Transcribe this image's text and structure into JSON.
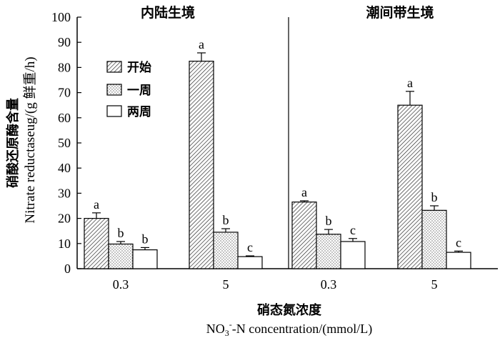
{
  "chart_data": {
    "type": "bar",
    "panels": [
      {
        "title": "内陆生境",
        "categories": [
          "0.3",
          "5"
        ],
        "series": [
          {
            "name": "开始",
            "values": [
              20.0,
              82.5
            ],
            "errors": [
              2.2,
              3.3
            ],
            "letters": [
              "a",
              "a"
            ]
          },
          {
            "name": "一周",
            "values": [
              9.8,
              14.5
            ],
            "errors": [
              1.0,
              1.4
            ],
            "letters": [
              "b",
              "b"
            ]
          },
          {
            "name": "两周",
            "values": [
              7.5,
              4.8
            ],
            "errors": [
              0.9,
              0.3
            ],
            "letters": [
              "b",
              "c"
            ]
          }
        ]
      },
      {
        "title": "潮间带生境",
        "categories": [
          "0.3",
          "5"
        ],
        "series": [
          {
            "name": "开始",
            "values": [
              26.5,
              65.0
            ],
            "errors": [
              0.5,
              5.5
            ],
            "letters": [
              "a",
              "a"
            ]
          },
          {
            "name": "一周",
            "values": [
              13.7,
              23.2
            ],
            "errors": [
              1.9,
              1.8
            ],
            "letters": [
              "b",
              "b"
            ]
          },
          {
            "name": "两周",
            "values": [
              10.8,
              6.5
            ],
            "errors": [
              1.2,
              0.5
            ],
            "letters": [
              "c",
              "c"
            ]
          }
        ]
      }
    ],
    "ylim": [
      0,
      100
    ],
    "yticks": [
      0,
      10,
      20,
      30,
      40,
      50,
      60,
      70,
      80,
      90,
      100
    ],
    "ylabel_cn": "硝酸还原酶含量",
    "ylabel_en": "Nitrate reductaseug/(g 鲜重/h)",
    "xlabel_cn": "硝态氮浓度",
    "xlabel_en_prefix": "NO",
    "xlabel_en_sub": "3",
    "xlabel_en_sup": "-",
    "xlabel_en_rest": "-N concentration/(mmol/L)",
    "legend": [
      "开始",
      "一周",
      "两周"
    ],
    "legend_position": "top-left",
    "grid": false
  }
}
